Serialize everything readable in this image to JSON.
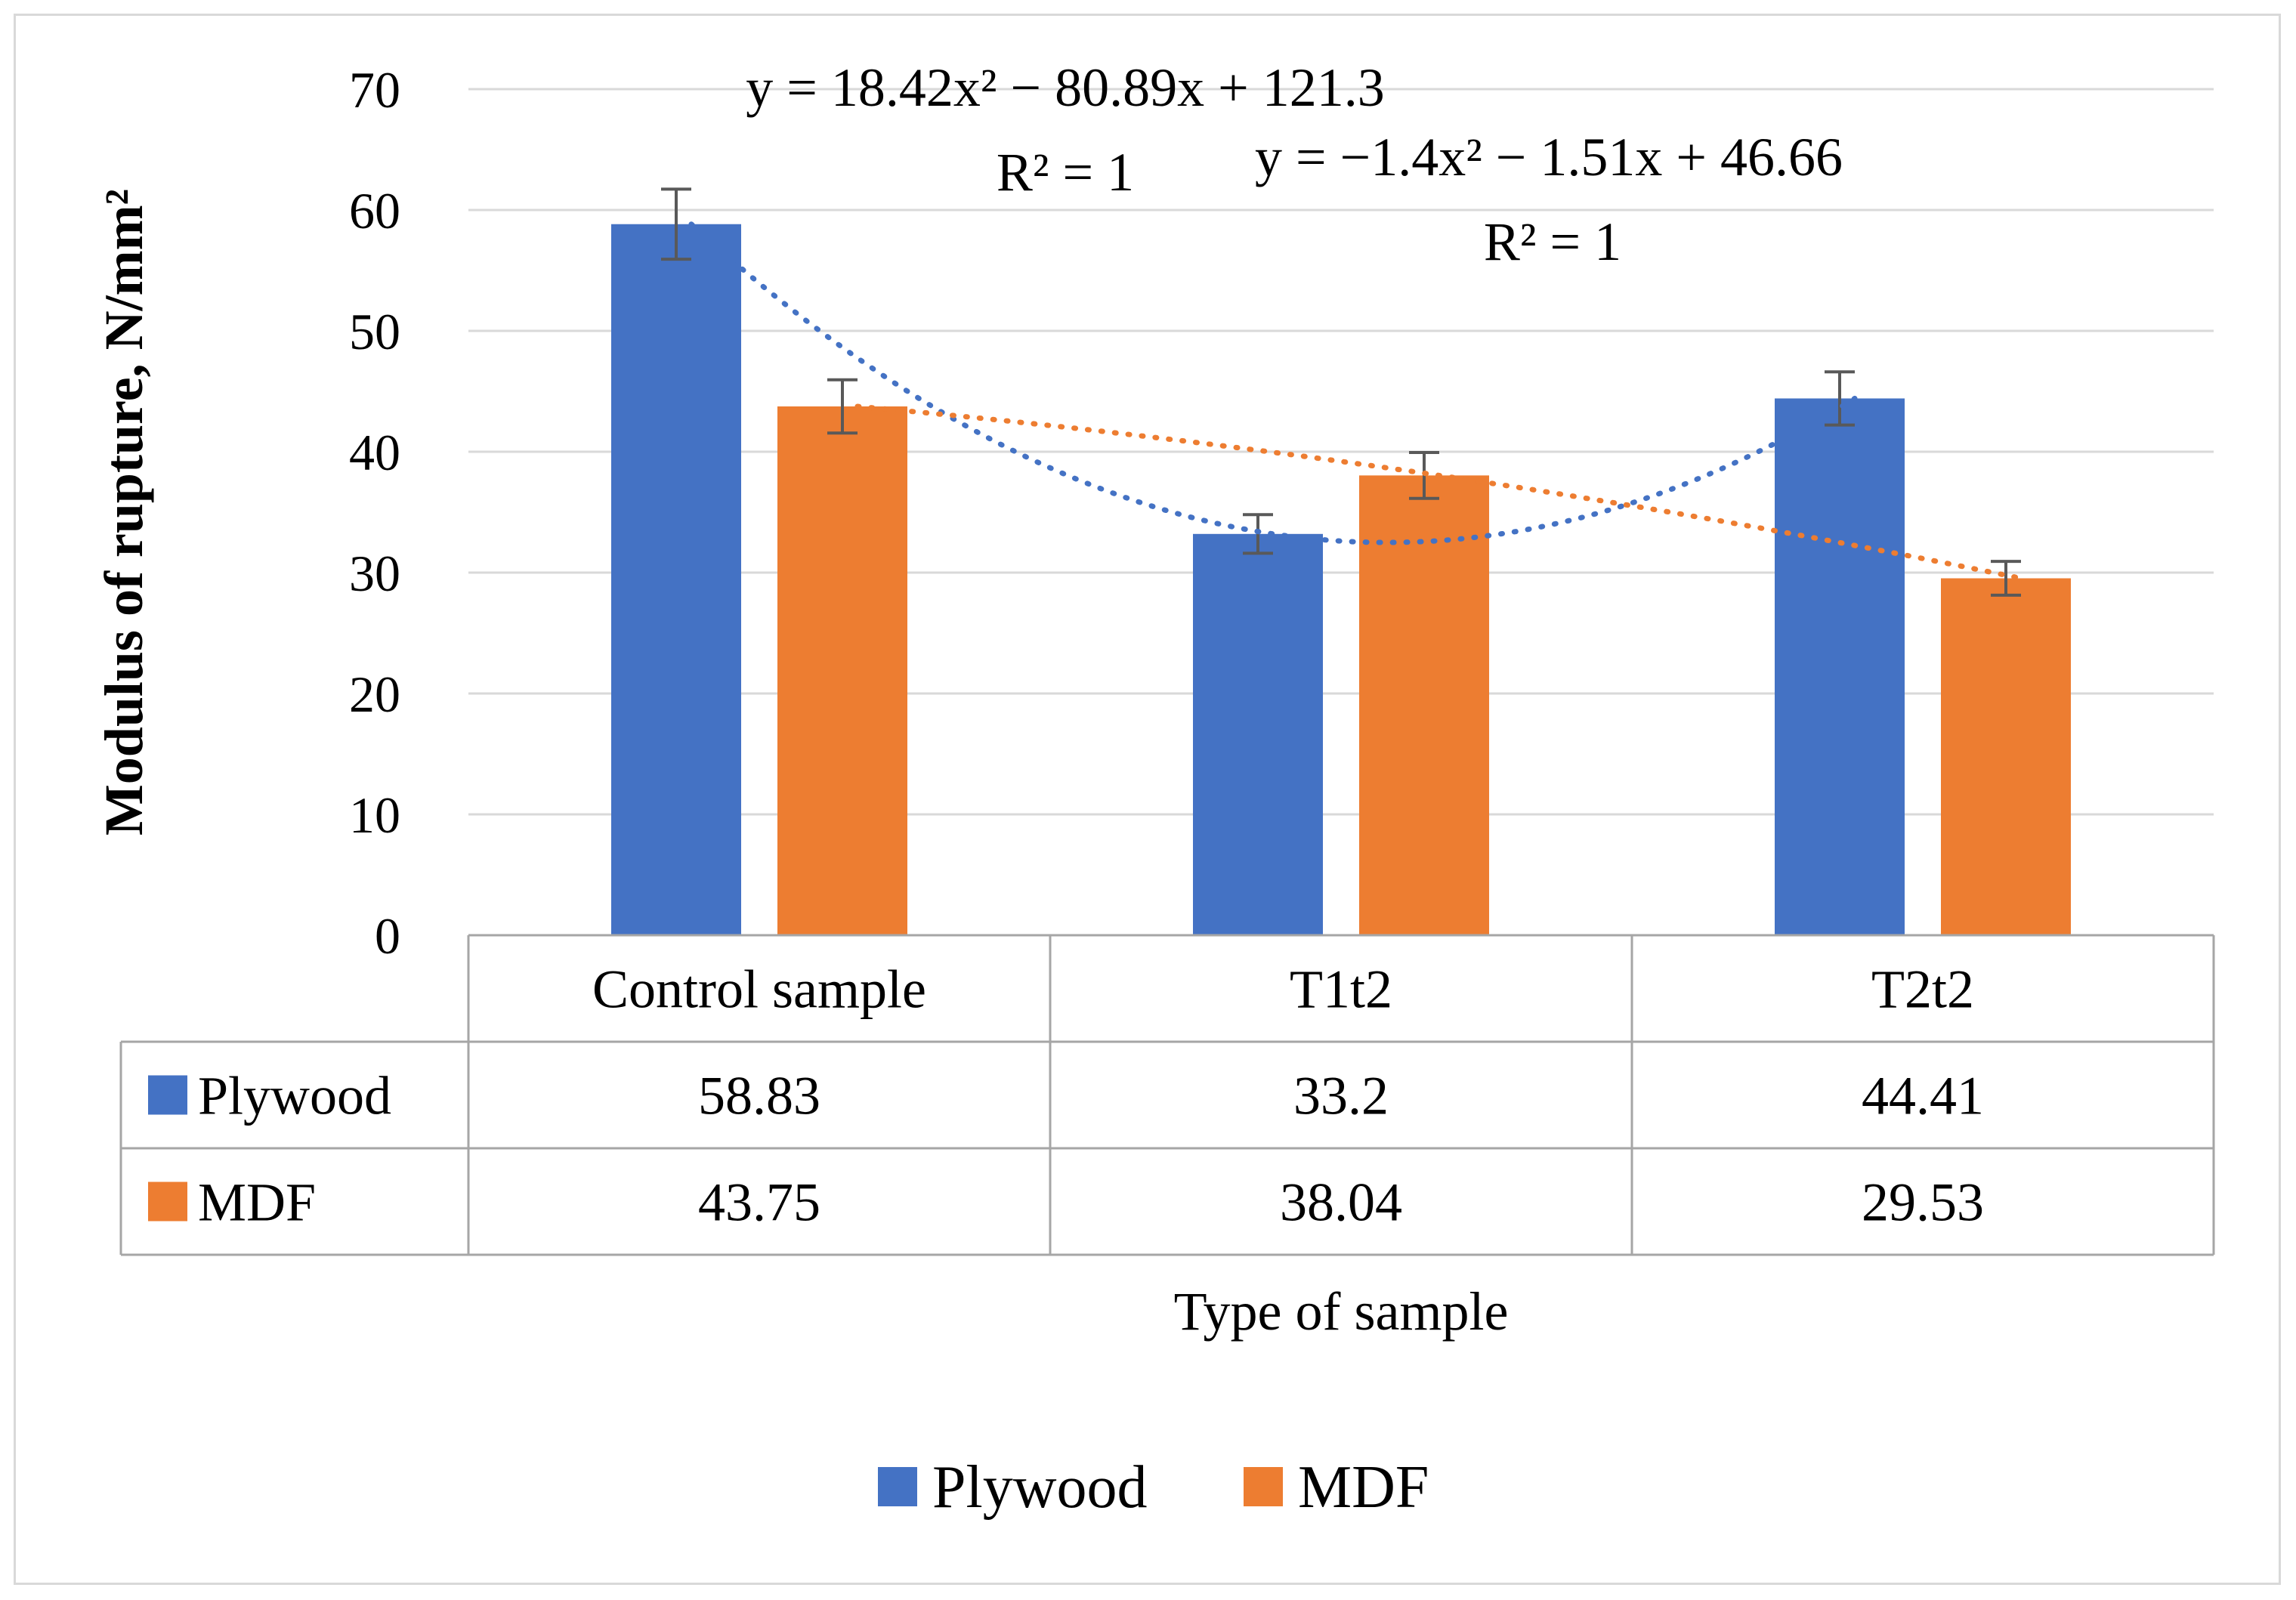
{
  "chart_data": {
    "type": "bar",
    "categories": [
      "Control sample",
      "T1t2",
      "T2t2"
    ],
    "series": [
      {
        "name": "Plywood",
        "values": [
          58.83,
          33.2,
          44.41
        ],
        "error": [
          2.9,
          1.6,
          2.2
        ],
        "color": "#4472c4"
      },
      {
        "name": "MDF",
        "values": [
          43.75,
          38.04,
          29.53
        ],
        "error": [
          2.2,
          1.9,
          1.4
        ],
        "color": "#ed7d31"
      }
    ],
    "ylim": [
      0,
      70
    ],
    "yticks": [
      0,
      10,
      20,
      30,
      40,
      50,
      60,
      70
    ],
    "ylabel": "Modulus of rupture, N/mm²",
    "xlabel": "Type of sample",
    "trendlines": [
      {
        "series": "Plywood",
        "equation": "y = 18.42x² − 80.89x + 121.3",
        "r2": "R² = 1",
        "coef": [
          18.42,
          -80.89,
          121.3
        ]
      },
      {
        "series": "MDF",
        "equation": "y = −1.4x² − 1.51x + 46.66",
        "r2": "R² = 1",
        "coef": [
          -1.4,
          -1.51,
          46.66
        ]
      }
    ],
    "data_table": true,
    "legend": "bottom-center",
    "grid": true
  }
}
